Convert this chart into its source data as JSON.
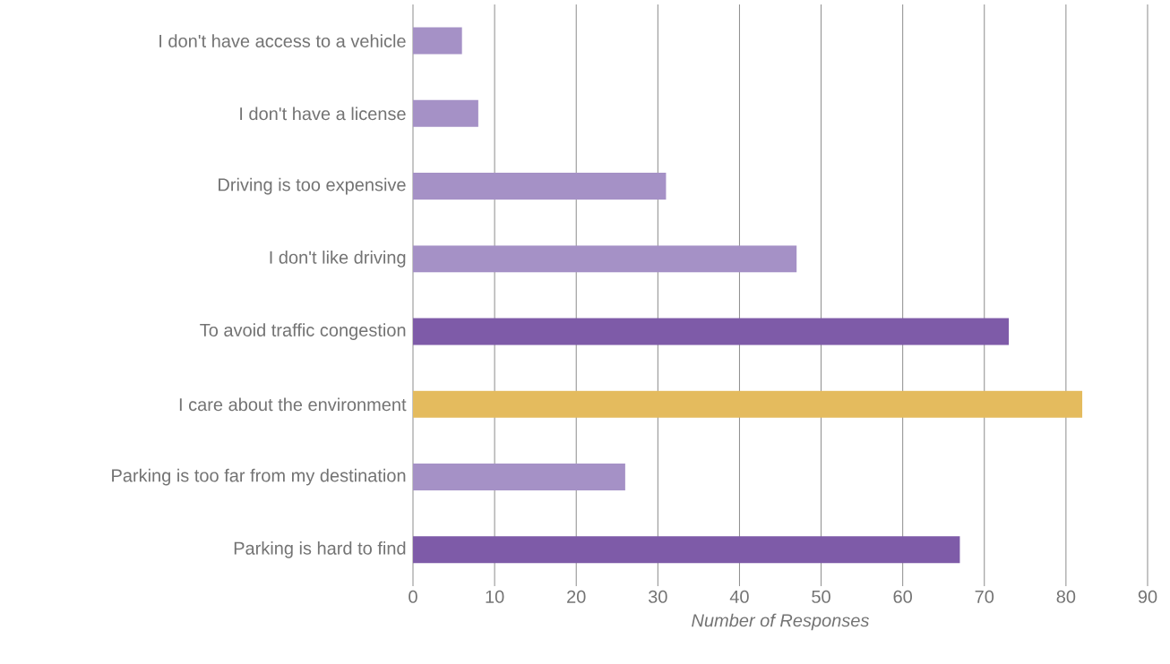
{
  "chart_data": {
    "type": "bar",
    "orientation": "horizontal",
    "xlabel": "Number of Responses",
    "categories": [
      "I don't have access to a vehicle",
      "I don't have a license",
      "Driving is too expensive",
      "I don't like driving",
      "To avoid traffic congestion",
      "I care about the environment",
      "Parking is too far from my destination",
      "Parking is hard to find"
    ],
    "values": [
      6,
      8,
      31,
      47,
      73,
      82,
      26,
      67
    ],
    "colors": [
      "#a591c6",
      "#a591c6",
      "#a591c6",
      "#a591c6",
      "#7e5ba8",
      "#e4bb5e",
      "#a591c6",
      "#7e5ba8"
    ],
    "xlim": [
      0,
      90
    ],
    "xticks": [
      0,
      10,
      20,
      30,
      40,
      50,
      60,
      70,
      80,
      90
    ],
    "grid": "x"
  }
}
